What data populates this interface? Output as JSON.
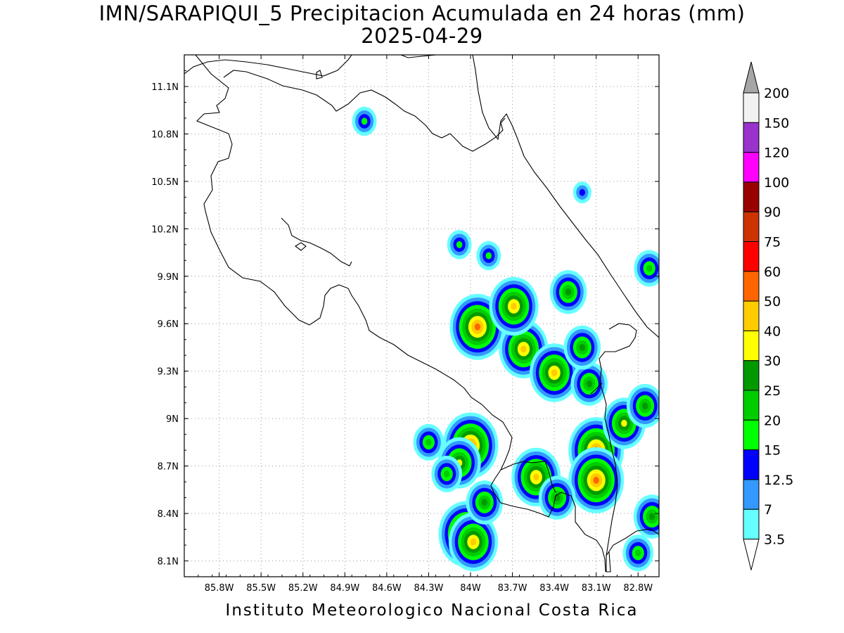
{
  "title": {
    "line1": "IMN/SARAPIQUI_5 Precipitacion Acumulada en 24 horas (mm)",
    "line2": "2025-04-29"
  },
  "footer": "Instituto Meteorologico Nacional Costa Rica",
  "map": {
    "lon_range": [
      -86.05,
      -82.65
    ],
    "lat_range": [
      8.0,
      11.3
    ],
    "x_ticks": [
      "85.8W",
      "85.5W",
      "85.2W",
      "84.9W",
      "84.6W",
      "84.3W",
      "84W",
      "83.7W",
      "83.4W",
      "83.1W",
      "82.8W"
    ],
    "x_tick_values": [
      -85.8,
      -85.5,
      -85.2,
      -84.9,
      -84.6,
      -84.3,
      -84.0,
      -83.7,
      -83.4,
      -83.1,
      -82.8
    ],
    "y_ticks": [
      "11.1N",
      "10.8N",
      "10.5N",
      "10.2N",
      "9.9N",
      "9.6N",
      "9.3N",
      "9N",
      "8.7N",
      "8.4N",
      "8.1N"
    ],
    "y_tick_values": [
      11.1,
      10.8,
      10.5,
      10.2,
      9.9,
      9.6,
      9.3,
      9.0,
      8.7,
      8.4,
      8.1
    ],
    "grid": "dotted"
  },
  "colorbar": {
    "labels": [
      "3.5",
      "7",
      "12.5",
      "15",
      "20",
      "25",
      "30",
      "40",
      "50",
      "60",
      "75",
      "90",
      "100",
      "120",
      "150",
      "200"
    ],
    "colors": [
      "#66ffff",
      "#3399ff",
      "#0000ff",
      "#00ff00",
      "#00cc00",
      "#009900",
      "#ffff00",
      "#ffcc00",
      "#ff6600",
      "#ff0000",
      "#cc3300",
      "#990000",
      "#ff00ff",
      "#9933cc",
      "#f2f2f2",
      "#a6a6a6"
    ]
  },
  "precip_cells": [
    {
      "lon": -84.0,
      "lat": 8.83,
      "level": 8
    },
    {
      "lon": -84.08,
      "lat": 8.72,
      "level": 6
    },
    {
      "lon": -84.03,
      "lat": 8.27,
      "level": 8
    },
    {
      "lon": -83.98,
      "lat": 8.22,
      "level": 7
    },
    {
      "lon": -83.95,
      "lat": 9.58,
      "level": 8
    },
    {
      "lon": -83.62,
      "lat": 9.44,
      "level": 7
    },
    {
      "lon": -83.4,
      "lat": 9.29,
      "level": 7
    },
    {
      "lon": -83.69,
      "lat": 9.71,
      "level": 7
    },
    {
      "lon": -83.1,
      "lat": 8.8,
      "level": 8
    },
    {
      "lon": -83.1,
      "lat": 8.61,
      "level": 8
    },
    {
      "lon": -82.9,
      "lat": 8.97,
      "level": 6
    },
    {
      "lon": -83.53,
      "lat": 8.63,
      "level": 7
    },
    {
      "lon": -83.15,
      "lat": 9.22,
      "level": 5
    },
    {
      "lon": -83.3,
      "lat": 9.8,
      "level": 5
    },
    {
      "lon": -83.2,
      "lat": 9.45,
      "level": 5
    },
    {
      "lon": -82.75,
      "lat": 9.08,
      "level": 5
    },
    {
      "lon": -84.3,
      "lat": 8.85,
      "level": 4
    },
    {
      "lon": -83.9,
      "lat": 8.47,
      "level": 5
    },
    {
      "lon": -83.38,
      "lat": 8.5,
      "level": 5
    },
    {
      "lon": -82.7,
      "lat": 8.38,
      "level": 5
    },
    {
      "lon": -82.72,
      "lat": 9.95,
      "level": 4
    },
    {
      "lon": -84.76,
      "lat": 10.88,
      "level": 3
    },
    {
      "lon": -83.2,
      "lat": 10.43,
      "level": 2
    },
    {
      "lon": -84.08,
      "lat": 10.1,
      "level": 3
    },
    {
      "lon": -83.87,
      "lat": 10.03,
      "level": 3
    },
    {
      "lon": -84.17,
      "lat": 8.65,
      "level": 4
    },
    {
      "lon": -82.8,
      "lat": 8.15,
      "level": 4
    }
  ]
}
